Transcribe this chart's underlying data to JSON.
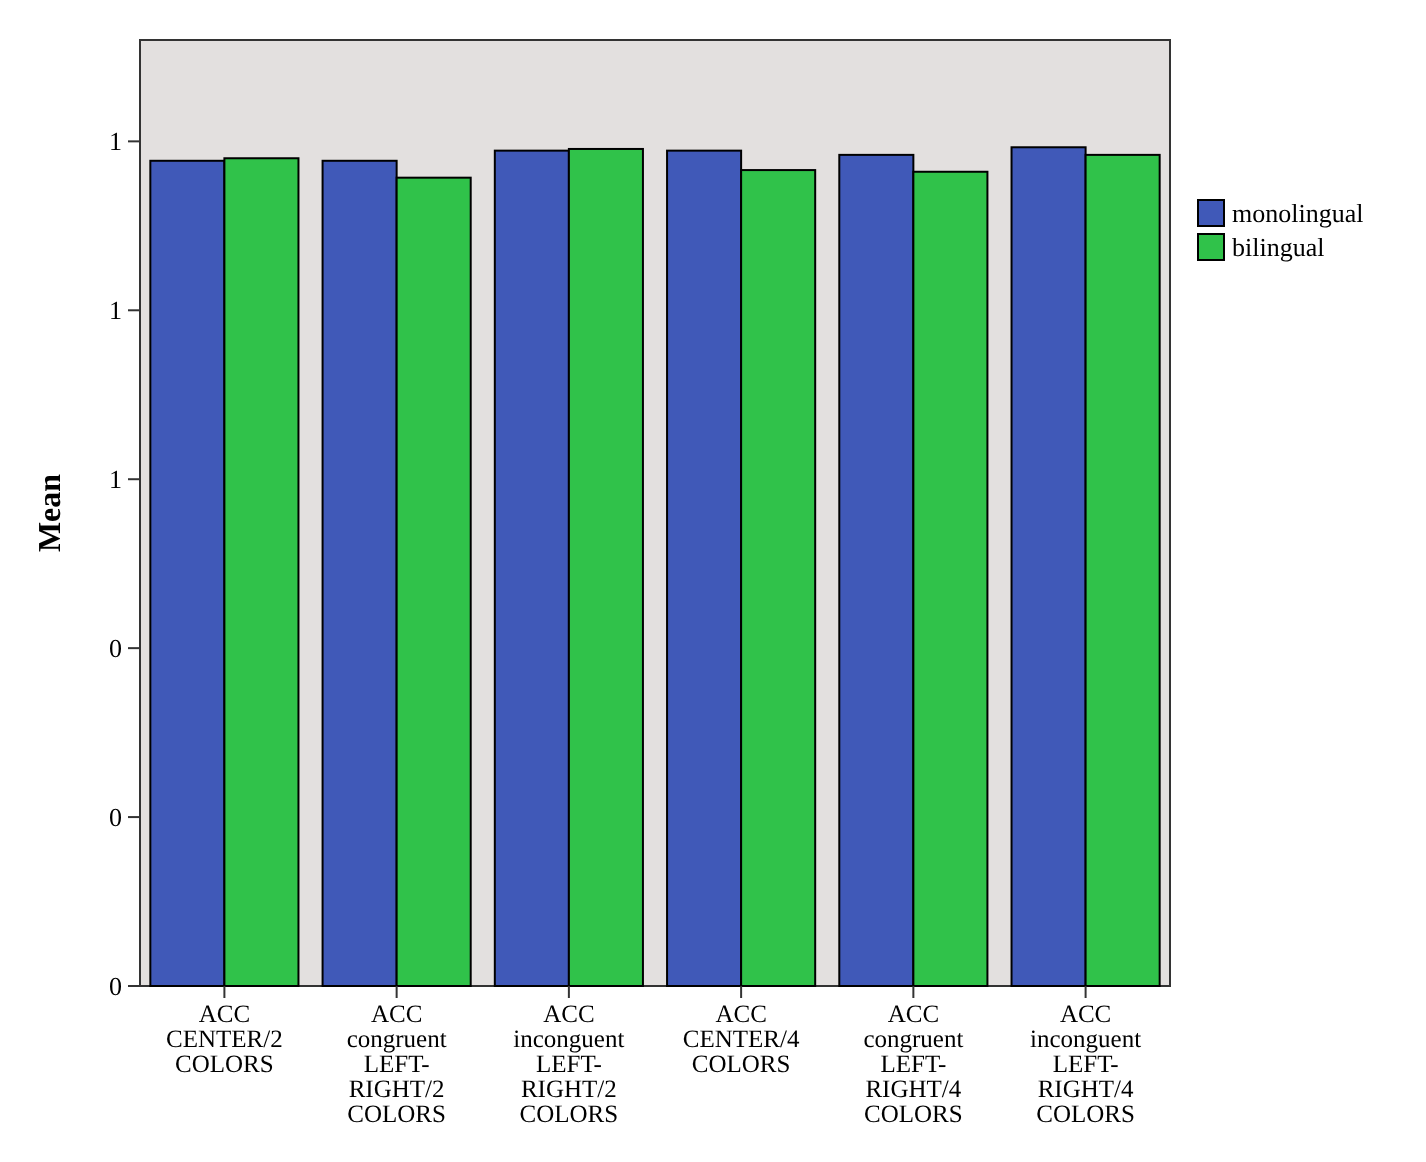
{
  "chart_data": {
    "type": "bar",
    "ylabel": "Mean",
    "categories": [
      "ACC\nCENTER/2\nCOLORS",
      "ACC\ncongruent\nLEFT-\nRIGHT/2\nCOLORS",
      "ACC\ninconguent\nLEFT-\nRIGHT/2\nCOLORS",
      "ACC\nCENTER/4\nCOLORS",
      "ACC\ncongruent\nLEFT-\nRIGHT/4\nCOLORS",
      "ACC\ninconguent\nLEFT-\nRIGHT/4\nCOLORS"
    ],
    "series": [
      {
        "name": "monolingual",
        "color": "#4059b8",
        "values": [
          0.977,
          0.977,
          0.989,
          0.989,
          0.984,
          0.993
        ]
      },
      {
        "name": "bilingual",
        "color": "#30c24a",
        "values": [
          0.98,
          0.957,
          0.991,
          0.966,
          0.964,
          0.984
        ]
      }
    ],
    "ylim": [
      0,
      1.12
    ],
    "yticks": [
      0,
      {
        "value": 0.2,
        "label": "0"
      },
      {
        "value": 0.4,
        "label": "0"
      },
      {
        "value": 0.6,
        "label": "1"
      },
      {
        "value": 0.8,
        "label": "1"
      },
      {
        "value": 1,
        "label": "1"
      }
    ],
    "grid": false,
    "legend": "right"
  }
}
